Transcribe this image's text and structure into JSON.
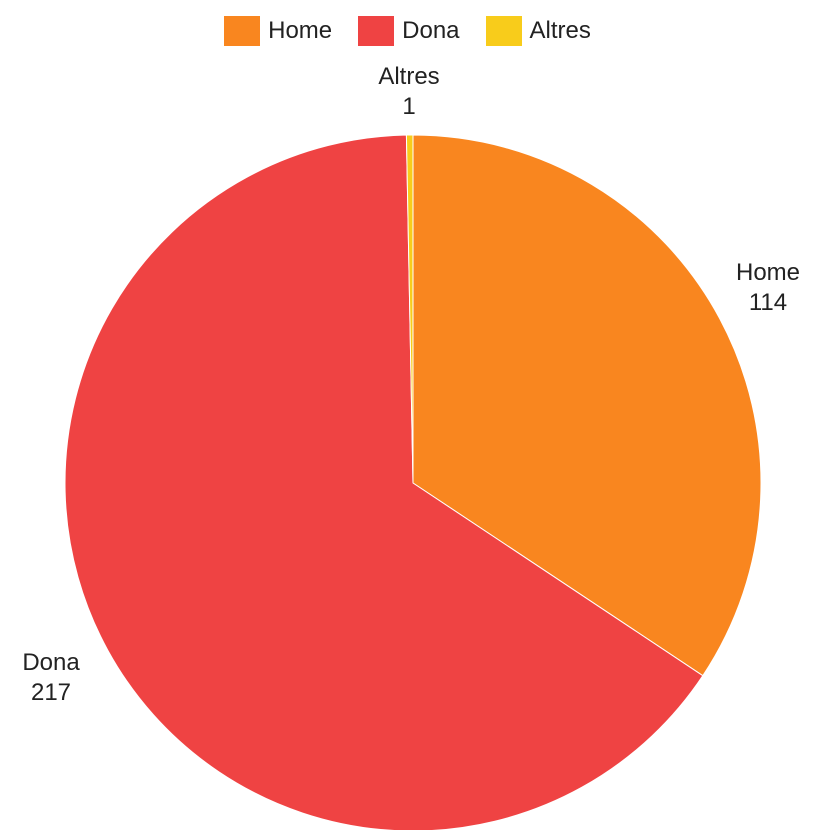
{
  "chart_data": {
    "type": "pie",
    "legend_position": "top",
    "slices": [
      {
        "label": "Home",
        "value": 114,
        "color": "#f9861f"
      },
      {
        "label": "Dona",
        "value": 217,
        "color": "#ef4343"
      },
      {
        "label": "Altres",
        "value": 1,
        "color": "#f8cc1b"
      }
    ]
  }
}
